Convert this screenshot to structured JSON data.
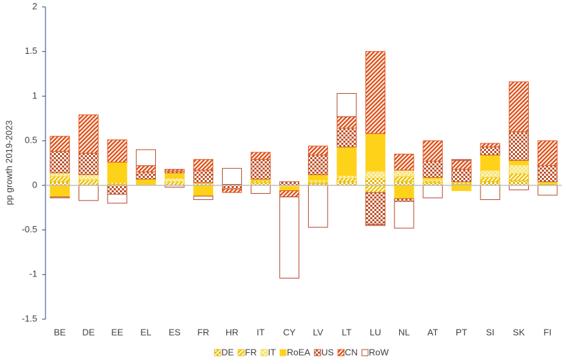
{
  "chart_data": {
    "type": "stacked-bar",
    "ylabel": "pp growth 2019-2023",
    "categories": [
      "BE",
      "DE",
      "EE",
      "EL",
      "ES",
      "FR",
      "HR",
      "IT",
      "CY",
      "LV",
      "LT",
      "LU",
      "NL",
      "AT",
      "PT",
      "SI",
      "SK",
      "FI"
    ],
    "series": [
      {
        "name": "DE",
        "color": "#e6b800",
        "values": [
          0.04,
          0,
          0.01,
          0.01,
          0,
          0.02,
          0.01,
          0.03,
          0,
          0.02,
          0.04,
          0.08,
          0.04,
          0.03,
          0.01,
          0.04,
          0.05,
          0.01
        ]
      },
      {
        "name": "FR",
        "color": "#f0c000",
        "values": [
          0.06,
          0.06,
          0.02,
          0,
          0.04,
          0,
          0,
          0.02,
          -0.01,
          0.02,
          0.04,
          -0.08,
          0.06,
          0.02,
          0.02,
          0.05,
          0.08,
          0.01
        ]
      },
      {
        "name": "IT",
        "color": "#f7d83a",
        "values": [
          0.04,
          0.06,
          0,
          0,
          0.04,
          0.01,
          0,
          0,
          -0.01,
          0.02,
          0.03,
          0.08,
          0.07,
          0.02,
          0.01,
          0.08,
          0.1,
          0.01
        ]
      },
      {
        "name": "RoEA",
        "color": "#ffd21a",
        "values": [
          -0.13,
          0,
          0.23,
          0.06,
          0.06,
          -0.12,
          0,
          0.02,
          -0.04,
          0.06,
          0.32,
          0.42,
          -0.15,
          0.02,
          -0.06,
          0.17,
          0.05,
          0.01
        ]
      },
      {
        "name": "US",
        "color": "#c0532b",
        "values": [
          0.24,
          0.24,
          -0.1,
          0.08,
          0.02,
          0.14,
          -0.04,
          0.22,
          0.04,
          0.22,
          0.21,
          -0.36,
          -0.03,
          0.18,
          0.14,
          0.09,
          0.32,
          0.18
        ]
      },
      {
        "name": "CN",
        "color": "#e0561f",
        "values": [
          0.17,
          0.43,
          0.25,
          0.07,
          0.02,
          0.12,
          -0.04,
          0.08,
          -0.07,
          0.1,
          0.13,
          0.92,
          0.18,
          0.23,
          0.1,
          0.04,
          0.56,
          0.28
        ]
      },
      {
        "name": "RoW",
        "color": "#b5472a",
        "values": [
          -0.01,
          -0.17,
          -0.1,
          0.18,
          -0.02,
          -0.04,
          0.18,
          -0.09,
          -0.91,
          -0.47,
          0.26,
          -0.01,
          -0.3,
          -0.14,
          0.01,
          -0.16,
          -0.05,
          -0.11
        ]
      }
    ],
    "ylim": [
      -1.5,
      2
    ],
    "yticks": [
      -1.5,
      -1,
      -0.5,
      0,
      0.5,
      1,
      1.5,
      2
    ],
    "grid": false
  }
}
